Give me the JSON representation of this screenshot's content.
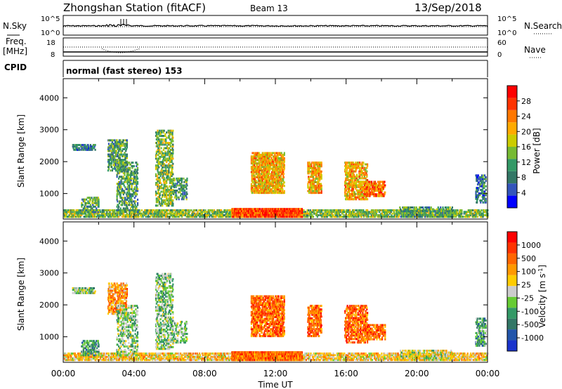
{
  "header": {
    "station": "Zhongshan Station (fitACF)",
    "beam": "Beam 13",
    "date": "13/Sep/2018"
  },
  "panels": {
    "nsky": {
      "label": "N.Sky",
      "ticks": [
        "10^5",
        "10^0"
      ],
      "right_ticks": [
        "10^5",
        "10^0"
      ],
      "right_label": "N.Search",
      "right_label_style": "dotted"
    },
    "freq": {
      "label_top": "Freq.",
      "label_bottom": "[MHz]",
      "ticks": [
        "18",
        "8"
      ],
      "right_ticks": [
        "60",
        "0"
      ],
      "right_label": "Nave",
      "right_label_style": "dotted"
    },
    "cpid": {
      "label": "CPID",
      "mode": "normal (fast stereo) 153"
    }
  },
  "chart_data": [
    {
      "type": "heatmap",
      "name": "power-panel",
      "ylabel": "Slant Range [km]",
      "xlabel": "",
      "yticks": [
        "1000",
        "2000",
        "3000",
        "4000"
      ],
      "ylim": [
        200,
        4600
      ],
      "xlim": [
        0,
        24
      ],
      "colorbar": {
        "label": "Power [dB]",
        "ticks": [
          "4",
          "8",
          "12",
          "16",
          "20",
          "24",
          "28"
        ],
        "colors": [
          "#0000ff",
          "#3355bb",
          "#337766",
          "#339966",
          "#77bb33",
          "#cccc00",
          "#ffaa00",
          "#ff7700",
          "#ff3300",
          "#ff0000"
        ]
      }
    },
    {
      "type": "heatmap",
      "name": "velocity-panel",
      "ylabel": "Slant Range [km]",
      "xlabel": "Time UT",
      "yticks": [
        "1000",
        "2000",
        "3000",
        "4000"
      ],
      "ylim": [
        200,
        4600
      ],
      "xlim": [
        0,
        24
      ],
      "xticks": [
        "00:00",
        "04:00",
        "08:00",
        "12:00",
        "16:00",
        "20:00",
        "00:00"
      ],
      "colorbar": {
        "label": "Velocity [m s^-1]",
        "ticks": [
          "1000",
          "500",
          "100",
          "25",
          "-25",
          "-100",
          "-500",
          "-1000"
        ],
        "colors": [
          "#1a33cc",
          "#2255aa",
          "#337766",
          "#339966",
          "#66cc33",
          "#cccccc",
          "#ffcc00",
          "#ff9900",
          "#ff6600",
          "#ff3300",
          "#ff0000"
        ]
      }
    }
  ]
}
